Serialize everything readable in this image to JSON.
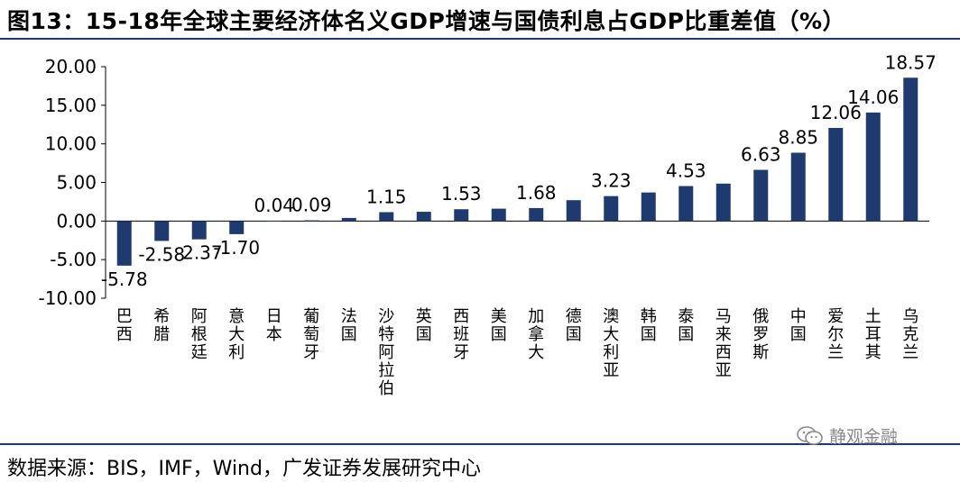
{
  "title": "图13：15-18年全球主要经济体名义GDP增速与国债利息占GDP比重差值（%）",
  "source": "数据来源：BIS，IMF，Wind，广发证券发展研究中心",
  "watermark": {
    "text": "静观金融",
    "icon": "wechat-icon"
  },
  "colors": {
    "bar": "#1f3a6e",
    "rule": "#1f3a6e",
    "axis": "#000000"
  },
  "chart_data": {
    "type": "bar",
    "categories": [
      "巴西",
      "希腊",
      "阿根廷",
      "意大利",
      "日本",
      "葡萄牙",
      "法国",
      "沙特阿拉伯",
      "英国",
      "西班牙",
      "美国",
      "加拿大",
      "德国",
      "澳大利亚",
      "韩国",
      "泰国",
      "马来西亚",
      "俄罗斯",
      "中国",
      "爱尔兰",
      "土耳其",
      "乌克兰"
    ],
    "values": [
      -5.78,
      -2.58,
      -2.37,
      -1.7,
      0.04,
      0.09,
      0.4,
      1.15,
      1.2,
      1.53,
      1.6,
      1.68,
      2.7,
      3.23,
      3.7,
      4.53,
      4.85,
      6.63,
      8.85,
      12.06,
      14.06,
      18.57
    ],
    "data_labels": [
      "-5.78",
      "-2.58",
      "-2.37",
      "-1.70",
      "0.04",
      "0.09",
      "",
      "1.15",
      "",
      "1.53",
      "",
      "1.68",
      "",
      "3.23",
      "",
      "4.53",
      "",
      "6.63",
      "8.85",
      "12.06",
      "14.06",
      "18.57"
    ],
    "y_ticks": [
      "20.00",
      "15.00",
      "10.00",
      "5.00",
      "0.00",
      "-5.00",
      "-10.00"
    ],
    "ylim": [
      -10,
      20
    ],
    "grid": false,
    "legend": "none"
  }
}
